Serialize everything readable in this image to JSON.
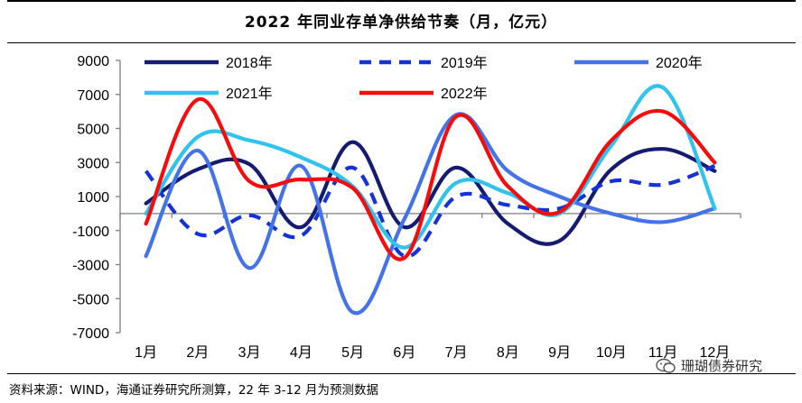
{
  "title": "2022 年同业存单净供给节奏（月，亿元）",
  "source": "资料来源：WIND，海通证券研究所测算，22 年 3-12 月为预测数据",
  "watermark": "珊瑚债券研究",
  "chart_data": {
    "type": "line",
    "title": "2022 年同业存单净供给节奏（月，亿元）",
    "xlabel": "",
    "ylabel": "",
    "categories": [
      "1月",
      "2月",
      "3月",
      "4月",
      "5月",
      "6月",
      "7月",
      "8月",
      "9月",
      "10月",
      "11月",
      "12月"
    ],
    "ylim": [
      -7000,
      9000
    ],
    "yticks": [
      "9000",
      "7000",
      "5000",
      "3000",
      "1000",
      "-1000",
      "-3000",
      "-5000",
      "-7000"
    ],
    "ytick_values": [
      9000,
      7000,
      5000,
      3000,
      1000,
      -1000,
      -3000,
      -5000,
      -7000
    ],
    "legend_position": "top",
    "series": [
      {
        "name": "2018年",
        "values": [
          600,
          2600,
          2900,
          -800,
          4200,
          -800,
          2700,
          -600,
          -1600,
          2600,
          3800,
          2500
        ],
        "color": "#141b70",
        "dash": "solid"
      },
      {
        "name": "2019年",
        "values": [
          2500,
          -1200,
          -100,
          -1300,
          2700,
          -2500,
          1000,
          500,
          300,
          1900,
          1700,
          2800
        ],
        "color": "#1532d6",
        "dash": "dashed"
      },
      {
        "name": "2020年",
        "values": [
          -2500,
          3700,
          -3200,
          2800,
          -5800,
          -300,
          5800,
          2500,
          1000,
          0,
          -500,
          300
        ],
        "color": "#4472e8",
        "dash": "solid"
      },
      {
        "name": "2021年",
        "values": [
          0,
          4500,
          4300,
          3300,
          1600,
          -2000,
          1800,
          1200,
          0,
          4000,
          7400,
          300
        ],
        "color": "#2fc3ed",
        "dash": "solid"
      },
      {
        "name": "2022年",
        "values": [
          -600,
          6700,
          1900,
          2000,
          1500,
          -2600,
          5700,
          1600,
          100,
          4300,
          6000,
          3000
        ],
        "color": "#f50d0d",
        "dash": "solid"
      }
    ]
  }
}
